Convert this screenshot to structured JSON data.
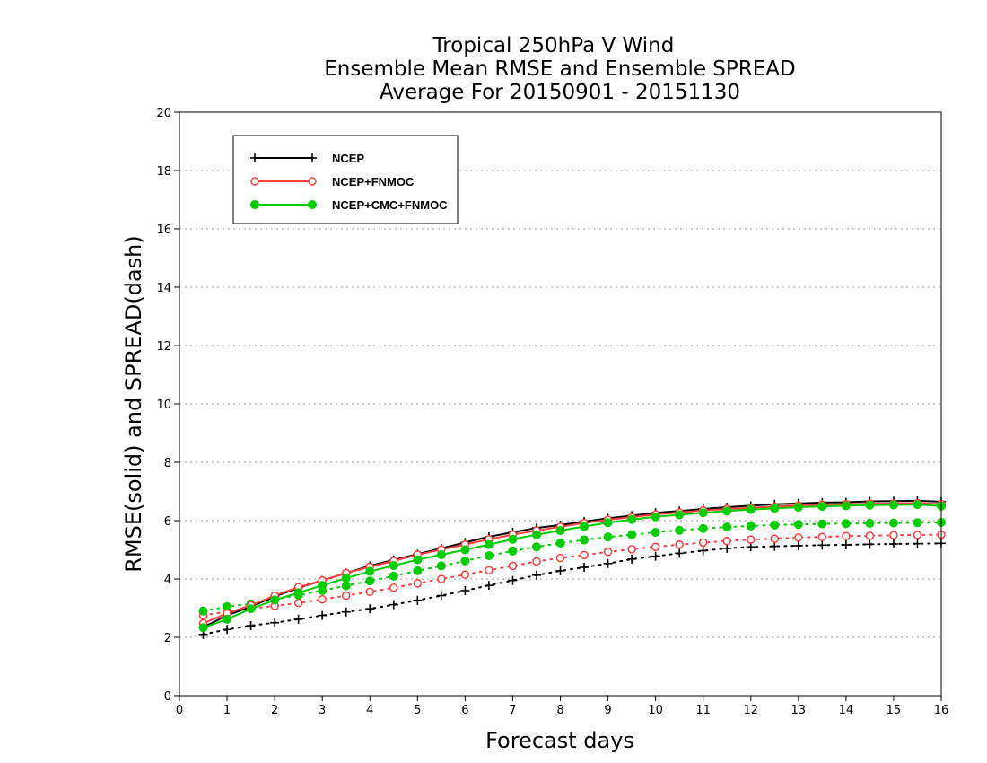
{
  "chart_data": {
    "type": "line",
    "title_lines": [
      "Tropical 250hPa V Wind",
      "Ensemble Mean RMSE and Ensemble SPREAD",
      "Average For 20150901 - 20151130"
    ],
    "xlabel": "Forecast days",
    "ylabel": "RMSE(solid) and SPREAD(dash)",
    "xlim": [
      0,
      16
    ],
    "ylim": [
      0,
      20
    ],
    "xticks": [
      0,
      1,
      2,
      3,
      4,
      5,
      6,
      7,
      8,
      9,
      10,
      11,
      12,
      13,
      14,
      15,
      16
    ],
    "yticks": [
      0,
      2,
      4,
      6,
      8,
      10,
      12,
      14,
      16,
      18,
      20
    ],
    "grid": "horizontal dotted",
    "legend_position": "top-left",
    "x": [
      0.5,
      1,
      1.5,
      2,
      2.5,
      3,
      3.5,
      4,
      4.5,
      5,
      5.5,
      6,
      6.5,
      7,
      7.5,
      8,
      8.5,
      9,
      9.5,
      10,
      10.5,
      11,
      11.5,
      12,
      12.5,
      13,
      13.5,
      14,
      14.5,
      15,
      15.5,
      16
    ],
    "series": [
      {
        "name": "NCEP",
        "color": "#000000",
        "marker": "plus",
        "rmse": [
          2.35,
          2.75,
          3.05,
          3.4,
          3.7,
          3.95,
          4.2,
          4.45,
          4.65,
          4.85,
          5.05,
          5.25,
          5.45,
          5.6,
          5.75,
          5.85,
          5.97,
          6.08,
          6.17,
          6.27,
          6.33,
          6.4,
          6.46,
          6.51,
          6.56,
          6.59,
          6.62,
          6.63,
          6.66,
          6.67,
          6.68,
          6.65
        ],
        "spread": [
          2.1,
          2.27,
          2.4,
          2.5,
          2.62,
          2.75,
          2.87,
          2.98,
          3.12,
          3.27,
          3.43,
          3.6,
          3.78,
          3.95,
          4.13,
          4.28,
          4.4,
          4.53,
          4.68,
          4.78,
          4.88,
          4.97,
          5.05,
          5.1,
          5.12,
          5.14,
          5.16,
          5.17,
          5.19,
          5.2,
          5.21,
          5.22
        ]
      },
      {
        "name": "NCEP+FNMOC",
        "color": "#ff4040",
        "marker": "open-circle",
        "rmse": [
          2.48,
          2.82,
          3.1,
          3.43,
          3.72,
          3.95,
          4.2,
          4.42,
          4.62,
          4.83,
          5.01,
          5.18,
          5.36,
          5.52,
          5.66,
          5.79,
          5.92,
          6.03,
          6.12,
          6.21,
          6.28,
          6.35,
          6.4,
          6.44,
          6.48,
          6.52,
          6.55,
          6.57,
          6.58,
          6.59,
          6.6,
          6.57
        ],
        "spread": [
          2.75,
          2.88,
          2.98,
          3.08,
          3.18,
          3.3,
          3.43,
          3.56,
          3.7,
          3.85,
          4.0,
          4.15,
          4.3,
          4.45,
          4.6,
          4.72,
          4.82,
          4.93,
          5.02,
          5.1,
          5.18,
          5.25,
          5.3,
          5.35,
          5.38,
          5.42,
          5.44,
          5.47,
          5.48,
          5.5,
          5.51,
          5.52
        ]
      },
      {
        "name": "NCEP+CMC+FNMOC",
        "color": "#00cc00",
        "marker": "filled-circle",
        "rmse": [
          2.33,
          2.62,
          2.98,
          3.28,
          3.53,
          3.78,
          4.03,
          4.26,
          4.46,
          4.66,
          4.83,
          5.0,
          5.18,
          5.36,
          5.52,
          5.66,
          5.8,
          5.93,
          6.04,
          6.13,
          6.2,
          6.27,
          6.33,
          6.38,
          6.42,
          6.46,
          6.49,
          6.51,
          6.53,
          6.54,
          6.55,
          6.5
        ],
        "spread": [
          2.9,
          3.05,
          3.15,
          3.3,
          3.45,
          3.6,
          3.77,
          3.93,
          4.1,
          4.28,
          4.45,
          4.62,
          4.8,
          4.96,
          5.1,
          5.23,
          5.34,
          5.44,
          5.52,
          5.6,
          5.67,
          5.73,
          5.78,
          5.82,
          5.85,
          5.87,
          5.89,
          5.9,
          5.91,
          5.92,
          5.93,
          5.94
        ]
      }
    ]
  }
}
